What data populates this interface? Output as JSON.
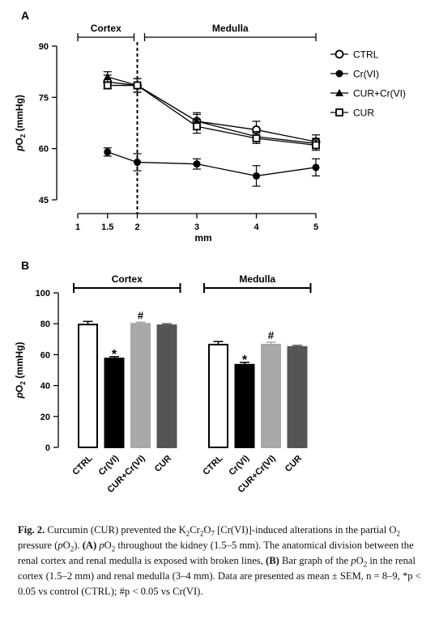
{
  "chart_data": [
    {
      "type": "line",
      "panel_label": "A",
      "region_labels": [
        "Cortex",
        "Medulla"
      ],
      "xlabel": "mm",
      "ylabel_main": "pO",
      "ylabel_sub": "2",
      "ylabel_unit": " (mmHg)",
      "xlim": [
        1,
        5
      ],
      "ylim": [
        45,
        90
      ],
      "xticks": [
        1,
        1.5,
        2,
        3,
        4,
        5
      ],
      "xtick_labels": [
        "1",
        "1.5",
        "2",
        "3",
        "4",
        "5"
      ],
      "yticks": [
        45,
        60,
        75,
        90
      ],
      "ytick_labels": [
        "45",
        "60",
        "75",
        "90"
      ],
      "divider_x": 2,
      "x": [
        1.5,
        2,
        3,
        4,
        5
      ],
      "series": [
        {
          "name": "CTRL",
          "marker": "open-circle",
          "values": [
            79.5,
            78.5,
            68,
            65.5,
            62
          ],
          "sem": [
            2,
            2,
            2.5,
            2.5,
            2
          ]
        },
        {
          "name": "Cr(VI)",
          "marker": "filled-circle",
          "values": [
            59,
            56,
            55.5,
            52,
            54.5
          ],
          "sem": [
            1.2,
            2.5,
            1.5,
            3,
            2.5
          ]
        },
        {
          "name": "CUR+Cr(VI)",
          "marker": "filled-triangle",
          "values": [
            81,
            78.5,
            68,
            63.5,
            61.5
          ],
          "sem": [
            1.5,
            2,
            2,
            1.5,
            1.5
          ]
        },
        {
          "name": "CUR",
          "marker": "open-square",
          "values": [
            78.5,
            78.5,
            66.5,
            63,
            61
          ],
          "sem": [
            1,
            2,
            2,
            1.5,
            1.5
          ]
        }
      ]
    },
    {
      "type": "bar",
      "panel_label": "B",
      "ylabel_main": "pO",
      "ylabel_sub": "2",
      "ylabel_unit": " (mmHg)",
      "ylim": [
        0,
        100
      ],
      "yticks": [
        0,
        20,
        40,
        60,
        80,
        100
      ],
      "ytick_labels": [
        "0",
        "20",
        "40",
        "60",
        "80",
        "100"
      ],
      "groups": [
        {
          "name": "Cortex",
          "categories": [
            "CTRL",
            "Cr(VI)",
            "CUR+Cr(VI)",
            "CUR"
          ],
          "values": [
            79.5,
            57.5,
            80,
            79
          ],
          "sem": [
            2,
            1.2,
            1,
            1
          ],
          "annotations": [
            "",
            "*",
            "#",
            ""
          ]
        },
        {
          "name": "Medulla",
          "categories": [
            "CTRL",
            "Cr(VI)",
            "CUR+Cr(VI)",
            "CUR"
          ],
          "values": [
            66.5,
            53.5,
            66.5,
            65
          ],
          "sem": [
            2,
            1.5,
            1.5,
            1
          ],
          "annotations": [
            "",
            "*",
            "#",
            ""
          ]
        }
      ],
      "bar_colors": [
        "#ffffff",
        "#000000",
        "#a8a8a8",
        "#555555"
      ],
      "bar_edge_colors": [
        "#000000",
        "#000000",
        "#a8a8a8",
        "#555555"
      ]
    }
  ],
  "caption": {
    "fig_label": "Fig. 2.",
    "parts": [
      " Curcumin (CUR) prevented the K",
      "2",
      "Cr",
      "2",
      "O",
      "7",
      " [Cr(VI)]-induced alterations in the partial O",
      "2",
      " pressure (",
      "p",
      "O",
      "2",
      "). ",
      "(A)",
      " ",
      "p",
      "O",
      "2",
      " throughout the kidney (1.5–5 mm). The anatomical division between the renal cortex and renal medulla is exposed with broken lines, ",
      "(B)",
      " Bar graph of the ",
      "p",
      "O",
      "2",
      " in the renal cortex (1.5–2 mm) and renal medulla (3–4 mm). Data are presented as mean ± SEM, n = 8–9, *p < 0.05 vs control (CTRL); #p < 0.05 vs Cr(VI)."
    ],
    "part_styles": [
      "n",
      "sub",
      "n",
      "sub",
      "n",
      "sub",
      "n",
      "sub",
      "n",
      "i",
      "n",
      "sub",
      "n",
      "b",
      "n",
      "i",
      "n",
      "sub",
      "n",
      "b",
      "n",
      "i",
      "n",
      "sub",
      "n"
    ]
  }
}
